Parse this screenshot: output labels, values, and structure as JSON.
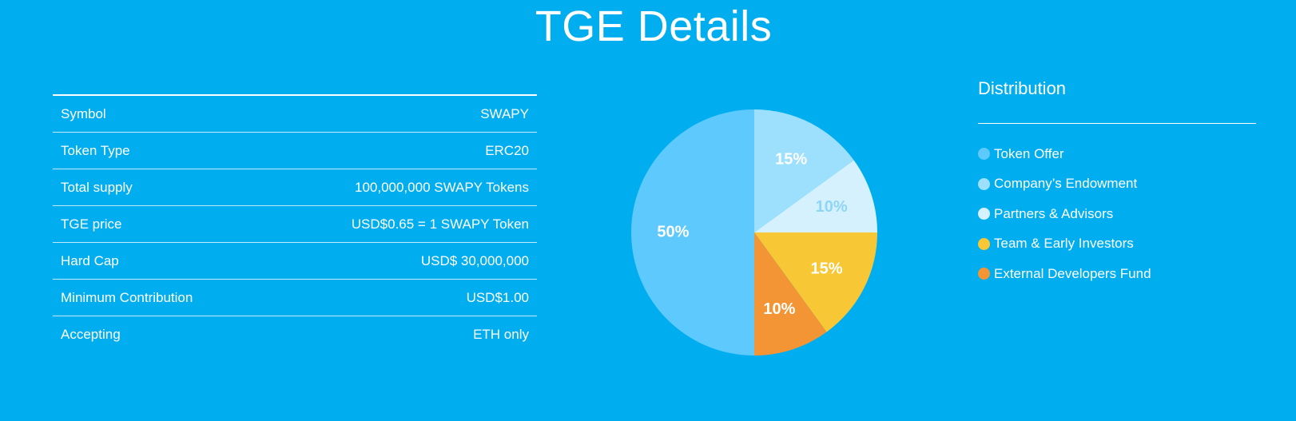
{
  "header": {
    "title": "TGE Details"
  },
  "table": {
    "rows": [
      [
        "Symbol",
        "SWAPY"
      ],
      [
        "Token Type",
        "ERC20"
      ],
      [
        "Total supply",
        "100,000,000 SWAPY Tokens"
      ],
      [
        "TGE price",
        "USD$0.65 = 1 SWAPY Token"
      ],
      [
        "Hard Cap",
        "USD$ 30,000,000"
      ],
      [
        "Minimum Contribution",
        "USD$1.00"
      ],
      [
        "Accepting",
        "ETH only"
      ]
    ]
  },
  "chart_data": {
    "type": "pie",
    "title": "Distribution",
    "categories": [
      "Token Offer",
      "Company’s Endowment",
      "Partners & Advisors",
      "Team & Early Investors",
      "External Developers Fund"
    ],
    "values": [
      50,
      15,
      10,
      15,
      10
    ],
    "value_labels": [
      "50%",
      "15%",
      "10%",
      "15%",
      "10%"
    ],
    "colors": [
      "#5ec9fc",
      "#9de0fd",
      "#d5f1fd",
      "#f7c735",
      "#f39535"
    ],
    "label_colors": [
      "#ffffff",
      "#ffffff",
      "#8fd5f5",
      "#ffffff",
      "#ffffff"
    ]
  }
}
